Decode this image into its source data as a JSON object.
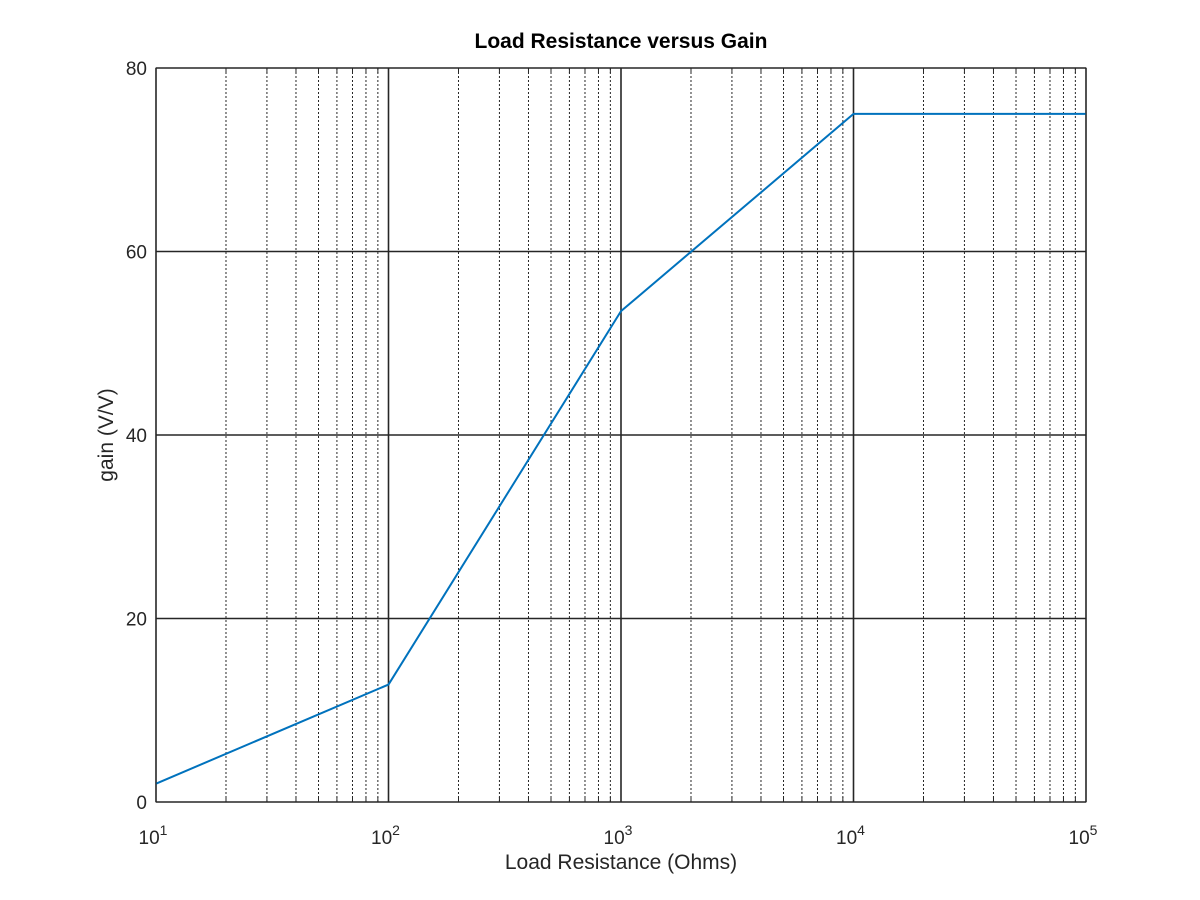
{
  "chart_data": {
    "type": "line",
    "title": "Load Resistance versus Gain",
    "xlabel": "Load Resistance (Ohms)",
    "ylabel": "gain (V/V)",
    "xscale": "log",
    "xlim": [
      10,
      100000
    ],
    "ylim": [
      0,
      80
    ],
    "xticks": [
      {
        "value": 10,
        "base": "10",
        "exp": "1"
      },
      {
        "value": 100,
        "base": "10",
        "exp": "2"
      },
      {
        "value": 1000,
        "base": "10",
        "exp": "3"
      },
      {
        "value": 10000,
        "base": "10",
        "exp": "4"
      },
      {
        "value": 100000,
        "base": "10",
        "exp": "5"
      }
    ],
    "yticks": [
      {
        "value": 0,
        "label": "0"
      },
      {
        "value": 20,
        "label": "20"
      },
      {
        "value": 40,
        "label": "40"
      },
      {
        "value": 60,
        "label": "60"
      },
      {
        "value": 80,
        "label": "80"
      }
    ],
    "grid": true,
    "minor_grid": true,
    "series": [
      {
        "color": "#0072bd",
        "x": [
          10,
          100,
          1000,
          10000,
          100000
        ],
        "y": [
          2.0,
          12.8,
          53.5,
          75.0,
          75.0
        ]
      }
    ]
  }
}
